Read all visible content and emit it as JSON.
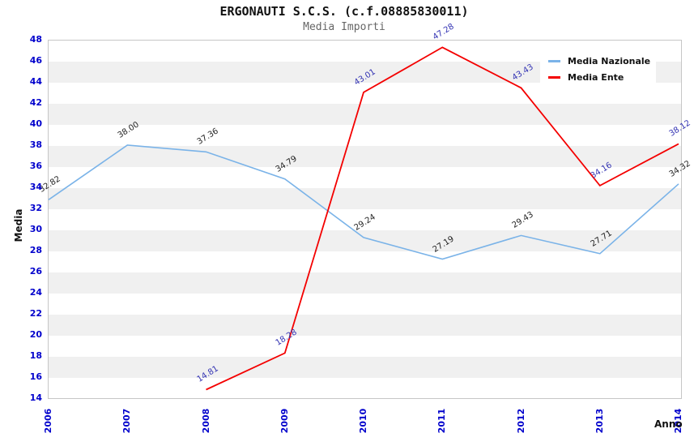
{
  "header": {
    "title": "ERGONAUTI S.C.S. (c.f.08885830011)",
    "subtitle": "Media Importi"
  },
  "chart_data": {
    "type": "line",
    "title": "ERGONAUTI S.C.S. (c.f.08885830011)",
    "subtitle": "Media Importi",
    "xlabel": "Anno",
    "ylabel": "Media",
    "x": [
      2006,
      2007,
      2008,
      2009,
      2010,
      2011,
      2012,
      2013,
      2014
    ],
    "xlim": [
      2006,
      2014
    ],
    "ylim": [
      14,
      48
    ],
    "ytick_step": 2,
    "grid": "alternating horizontal bands white/gray every 2 units",
    "legend_position": "top-right",
    "series": [
      {
        "name": "Media Nazionale",
        "color": "#7ab3e8",
        "label_color": "#222222",
        "x": [
          2006,
          2007,
          2008,
          2009,
          2010,
          2011,
          2012,
          2013,
          2014
        ],
        "values": [
          32.82,
          38.0,
          37.36,
          34.79,
          29.24,
          27.19,
          29.43,
          27.71,
          34.32
        ]
      },
      {
        "name": "Media Ente",
        "color": "#f40000",
        "label_color": "#3333b3",
        "x": [
          2008,
          2009,
          2010,
          2011,
          2012,
          2013,
          2014
        ],
        "values": [
          14.81,
          18.28,
          43.01,
          47.28,
          43.43,
          34.16,
          38.12
        ]
      }
    ]
  },
  "colors": {
    "tick_label": "#0000cc",
    "band_gray": "#f0f0f0",
    "plot_border": "#c6c6c6",
    "subtitle_gray": "#666666"
  }
}
